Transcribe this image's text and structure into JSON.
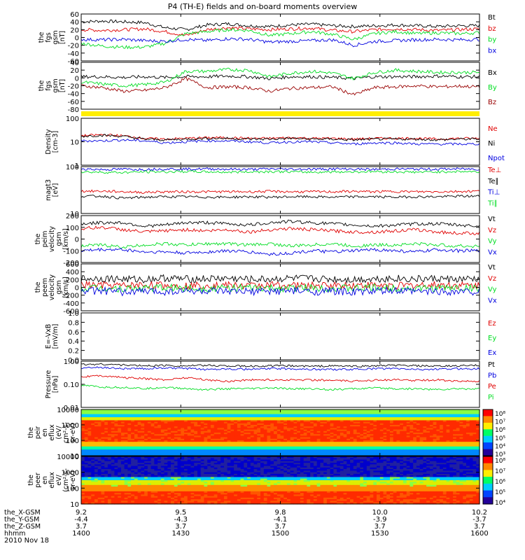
{
  "title": "P4 (TH-E) fields and on-board moments overview",
  "date_label": "2010 Nov 18",
  "colorbar_ticks": {
    "peir": [
      "10⁸",
      "10⁷",
      "10⁶",
      "10⁵",
      "10⁴",
      "10³"
    ],
    "peer": [
      "10⁸",
      "10⁷",
      "10⁶",
      "10⁵",
      "10⁴"
    ]
  },
  "ephemeris": {
    "labels": [
      "the_X-GSM",
      "the_Y-GSM",
      "the_Z-GSM",
      "hhmm"
    ],
    "columns": [
      {
        "x": "9.2",
        "y": "-4.4",
        "z": "3.7",
        "t": "1400"
      },
      {
        "x": "9.5",
        "y": "-4.3",
        "z": "3.7",
        "t": "1430"
      },
      {
        "x": "9.8",
        "y": "-4.1",
        "z": "3.7",
        "t": "1500"
      },
      {
        "x": "10.0",
        "y": "-3.9",
        "z": "3.7",
        "t": "1530"
      },
      {
        "x": "10.2",
        "y": "-3.7",
        "z": "3.7",
        "t": "1600"
      }
    ]
  },
  "colors": {
    "black": "#000000",
    "red": "#e00000",
    "green": "#00dd22",
    "blue": "#0000e0",
    "darkred": "#990000",
    "yellow": "#ffee00"
  },
  "chart_data": [
    {
      "type": "line",
      "id": "fgs_gsm",
      "ylabel": [
        "the",
        "fgs",
        "gsm",
        "[nT]"
      ],
      "ylim": [
        -60,
        60
      ],
      "ticks": [
        "60",
        "40",
        "20",
        "0",
        "-20",
        "-40",
        "-60"
      ],
      "series": [
        {
          "name": "Bt",
          "color": "black",
          "values": [
            40,
            42,
            40,
            38,
            25,
            20,
            32,
            35,
            30,
            28,
            32,
            34,
            30,
            28,
            30,
            32,
            30,
            28,
            30,
            30
          ]
        },
        {
          "name": "bz",
          "color": "red",
          "values": [
            20,
            18,
            20,
            22,
            15,
            5,
            20,
            25,
            22,
            20,
            22,
            24,
            18,
            15,
            20,
            22,
            20,
            18,
            20,
            22
          ]
        },
        {
          "name": "by",
          "color": "green",
          "values": [
            -15,
            -22,
            -25,
            -25,
            -15,
            10,
            15,
            20,
            18,
            5,
            10,
            15,
            8,
            -5,
            10,
            15,
            10,
            12,
            10,
            12
          ]
        },
        {
          "name": "bx",
          "color": "blue",
          "values": [
            -5,
            -6,
            -5,
            -8,
            -10,
            -5,
            -8,
            -3,
            -5,
            -12,
            -10,
            -8,
            -6,
            -20,
            -10,
            -8,
            -6,
            -5,
            -6,
            -5
          ]
        }
      ]
    },
    {
      "type": "line",
      "id": "fgs_gsm2",
      "ylabel": [
        "the",
        "fgs",
        "gsm",
        "[nT]"
      ],
      "ylim": [
        -90,
        40
      ],
      "ticks": [
        "40",
        "20",
        "0",
        "-20",
        "-40",
        "-60",
        "-80"
      ],
      "series": [
        {
          "name": "Bx",
          "color": "black",
          "values": [
            0,
            0,
            -2,
            0,
            -2,
            0,
            0,
            2,
            0,
            -5,
            0,
            0,
            -2,
            -5,
            0,
            0,
            0,
            2,
            0,
            0
          ]
        },
        {
          "name": "By",
          "color": "green",
          "values": [
            -15,
            -20,
            -25,
            -22,
            -15,
            15,
            15,
            20,
            18,
            0,
            10,
            15,
            10,
            -5,
            12,
            18,
            15,
            12,
            12,
            12
          ]
        },
        {
          "name": "Bz",
          "color": "darkred",
          "values": [
            -25,
            -30,
            -40,
            -38,
            -30,
            -5,
            -30,
            -28,
            -30,
            -40,
            -32,
            -30,
            -28,
            -50,
            -30,
            -28,
            -25,
            -28,
            -26,
            -28
          ]
        }
      ]
    },
    {
      "type": "line",
      "id": "density",
      "ylabel": [
        "Density",
        "[cm-3]"
      ],
      "scale": "log",
      "ylim": [
        1,
        100
      ],
      "ticks": [
        "100",
        "10",
        "1"
      ],
      "series": [
        {
          "name": "Ne",
          "color": "red",
          "values": [
            18,
            20,
            18,
            14,
            13,
            14,
            15,
            15,
            14,
            14,
            15,
            14,
            14,
            13,
            14,
            14,
            14,
            13,
            14,
            14
          ]
        },
        {
          "name": "Ni",
          "color": "black",
          "values": [
            17,
            19,
            17,
            13,
            12,
            13,
            14,
            14,
            13,
            13,
            14,
            13,
            13,
            12,
            13,
            13,
            13,
            12,
            13,
            13
          ]
        },
        {
          "name": "Npot",
          "color": "blue",
          "values": [
            11,
            11,
            12,
            11,
            9,
            10,
            11,
            11,
            10,
            9,
            10,
            10,
            9,
            8,
            9,
            9,
            8,
            8,
            8,
            8
          ]
        }
      ]
    },
    {
      "type": "line",
      "id": "temperature",
      "ylabel": [
        "magt3",
        "[eV]"
      ],
      "scale": "log",
      "ylim": [
        10,
        1000
      ],
      "ticks": [
        "100",
        "10"
      ],
      "series": [
        {
          "name": "Te⊥",
          "color": "red",
          "values": [
            90,
            90,
            85,
            80,
            85,
            85,
            85,
            85,
            85,
            88,
            85,
            85,
            85,
            88,
            85,
            88,
            85,
            85,
            88,
            90
          ]
        },
        {
          "name": "Te∥",
          "color": "black",
          "values": [
            55,
            55,
            45,
            50,
            52,
            52,
            50,
            50,
            52,
            50,
            52,
            52,
            50,
            52,
            52,
            50,
            52,
            52,
            55,
            55
          ]
        },
        {
          "name": "Ti⊥",
          "color": "blue",
          "values": [
            800,
            750,
            780,
            760,
            800,
            780,
            800,
            780,
            760,
            800,
            780,
            780,
            800,
            780,
            760,
            800,
            780,
            780,
            800,
            780
          ]
        },
        {
          "name": "Ti∥",
          "color": "green",
          "values": [
            600,
            580,
            560,
            600,
            600,
            620,
            600,
            580,
            600,
            620,
            600,
            580,
            600,
            600,
            620,
            600,
            580,
            600,
            620,
            600
          ]
        }
      ]
    },
    {
      "type": "line",
      "id": "peim_velocity",
      "ylabel": [
        "the",
        "peim",
        "velocity",
        "gsm",
        "[km/s]"
      ],
      "ylim": [
        -200,
        200
      ],
      "ticks": [
        "200",
        "100",
        "0",
        "-100",
        "-200"
      ],
      "series": [
        {
          "name": "Vt",
          "color": "black",
          "values": [
            130,
            140,
            140,
            110,
            120,
            140,
            140,
            130,
            120,
            140,
            150,
            140,
            130,
            120,
            110,
            120,
            130,
            130,
            120,
            110
          ]
        },
        {
          "name": "Vz",
          "color": "red",
          "values": [
            90,
            100,
            80,
            60,
            70,
            80,
            70,
            80,
            60,
            80,
            90,
            80,
            70,
            60,
            60,
            70,
            80,
            60,
            50,
            50
          ]
        },
        {
          "name": "Vy",
          "color": "green",
          "values": [
            -60,
            -50,
            -70,
            -50,
            -40,
            -50,
            -40,
            -40,
            -50,
            -40,
            -60,
            -50,
            -40,
            -60,
            -50,
            -50,
            -40,
            -50,
            -60,
            -60
          ]
        },
        {
          "name": "Vx",
          "color": "blue",
          "values": [
            -100,
            -90,
            -90,
            -110,
            -110,
            -120,
            -110,
            -100,
            -110,
            -130,
            -120,
            -100,
            -110,
            -100,
            -90,
            -100,
            -110,
            -90,
            -100,
            -100
          ]
        }
      ]
    },
    {
      "type": "line",
      "id": "peem_velocity",
      "ylabel": [
        "the",
        "peem",
        "velocity",
        "gsm",
        "[km/s]"
      ],
      "ylim": [
        -600,
        600
      ],
      "ticks": [
        "600",
        "400",
        "200",
        "0",
        "-200",
        "-400",
        "-600"
      ],
      "series": [
        {
          "name": "Vt",
          "color": "black",
          "values": [
            220,
            230,
            210,
            200,
            240,
            210,
            220,
            230,
            200,
            210,
            230,
            220,
            210,
            200,
            220,
            230,
            210,
            220,
            200,
            210
          ]
        },
        {
          "name": "Vz",
          "color": "red",
          "values": [
            60,
            50,
            40,
            60,
            50,
            40,
            60,
            50,
            40,
            60,
            50,
            40,
            50,
            60,
            50,
            40,
            50,
            60,
            50,
            40
          ]
        },
        {
          "name": "Vy",
          "color": "green",
          "values": [
            -20,
            -10,
            -30,
            -20,
            -10,
            -20,
            -30,
            -10,
            -20,
            -30,
            -20,
            -10,
            -20,
            -30,
            -10,
            -20,
            -30,
            -20,
            -10,
            -20
          ]
        },
        {
          "name": "Vx",
          "color": "blue",
          "values": [
            -100,
            -90,
            -120,
            -100,
            -110,
            -90,
            -100,
            -120,
            -110,
            -100,
            -90,
            -110,
            -100,
            -120,
            -100,
            -90,
            -110,
            -100,
            -110,
            -100
          ]
        }
      ]
    },
    {
      "type": "line",
      "id": "e_field",
      "ylabel": [
        "E=-VxB",
        "[mV/m]"
      ],
      "ylim": [
        0,
        1
      ],
      "ticks": [
        "1.0",
        "0.8",
        "0.6",
        "0.4",
        "0.2",
        "0.0"
      ],
      "series": [
        {
          "name": "Ez",
          "color": "red",
          "values": []
        },
        {
          "name": "Ey",
          "color": "green",
          "values": []
        },
        {
          "name": "Ex",
          "color": "blue",
          "values": []
        }
      ]
    },
    {
      "type": "line",
      "id": "pressure",
      "ylabel": [
        "Pressure",
        "[nPa]"
      ],
      "scale": "log",
      "ylim": [
        0.01,
        3
      ],
      "ticks": [
        "1.00",
        "0.10",
        "0.01"
      ],
      "series": [
        {
          "name": "Pt",
          "color": "black",
          "values": [
            2.0,
            2.1,
            1.9,
            1.7,
            1.8,
            1.7,
            1.8,
            1.7,
            1.6,
            1.7,
            1.7,
            1.6,
            1.7,
            1.6,
            1.7,
            1.8,
            1.7,
            1.6,
            1.7,
            1.8
          ]
        },
        {
          "name": "Pb",
          "color": "blue",
          "values": [
            1.3,
            1.4,
            1.2,
            1.2,
            1.3,
            1.2,
            1.1,
            1.2,
            1.1,
            1.2,
            1.2,
            1.1,
            1.1,
            1.1,
            1.2,
            1.2,
            1.1,
            1.1,
            1.2,
            1.2
          ]
        },
        {
          "name": "Pe",
          "color": "red",
          "values": [
            0.45,
            0.5,
            0.4,
            0.35,
            0.3,
            0.4,
            0.3,
            0.25,
            0.3,
            0.3,
            0.3,
            0.3,
            0.28,
            0.25,
            0.3,
            0.3,
            0.28,
            0.3,
            0.25,
            0.25
          ]
        },
        {
          "name": "Pi",
          "color": "green",
          "values": [
            0.15,
            0.12,
            0.12,
            0.1,
            0.12,
            0.1,
            0.09,
            0.1,
            0.1,
            0.11,
            0.1,
            0.1,
            0.09,
            0.1,
            0.11,
            0.1,
            0.1,
            0.09,
            0.1,
            0.1
          ]
        }
      ]
    },
    {
      "type": "heatmap",
      "id": "peir_spectrogram",
      "ylabel": [
        "the",
        "peir",
        "en",
        "eflux",
        "(eV/",
        "cm²-s-",
        "sr-eV)"
      ],
      "scale": "log",
      "ylim": [
        10,
        20000
      ],
      "ticks": [
        "10000",
        "1000",
        "100",
        "10"
      ]
    },
    {
      "type": "heatmap",
      "id": "peer_spectrogram",
      "ylabel": [
        "the",
        "peer",
        "en",
        "eflux",
        "eV/",
        "(cm²-s-",
        "sr-eV)"
      ],
      "scale": "log",
      "ylim": [
        10,
        20000
      ],
      "ticks": [
        "10000",
        "1000",
        "100",
        "10"
      ]
    }
  ]
}
